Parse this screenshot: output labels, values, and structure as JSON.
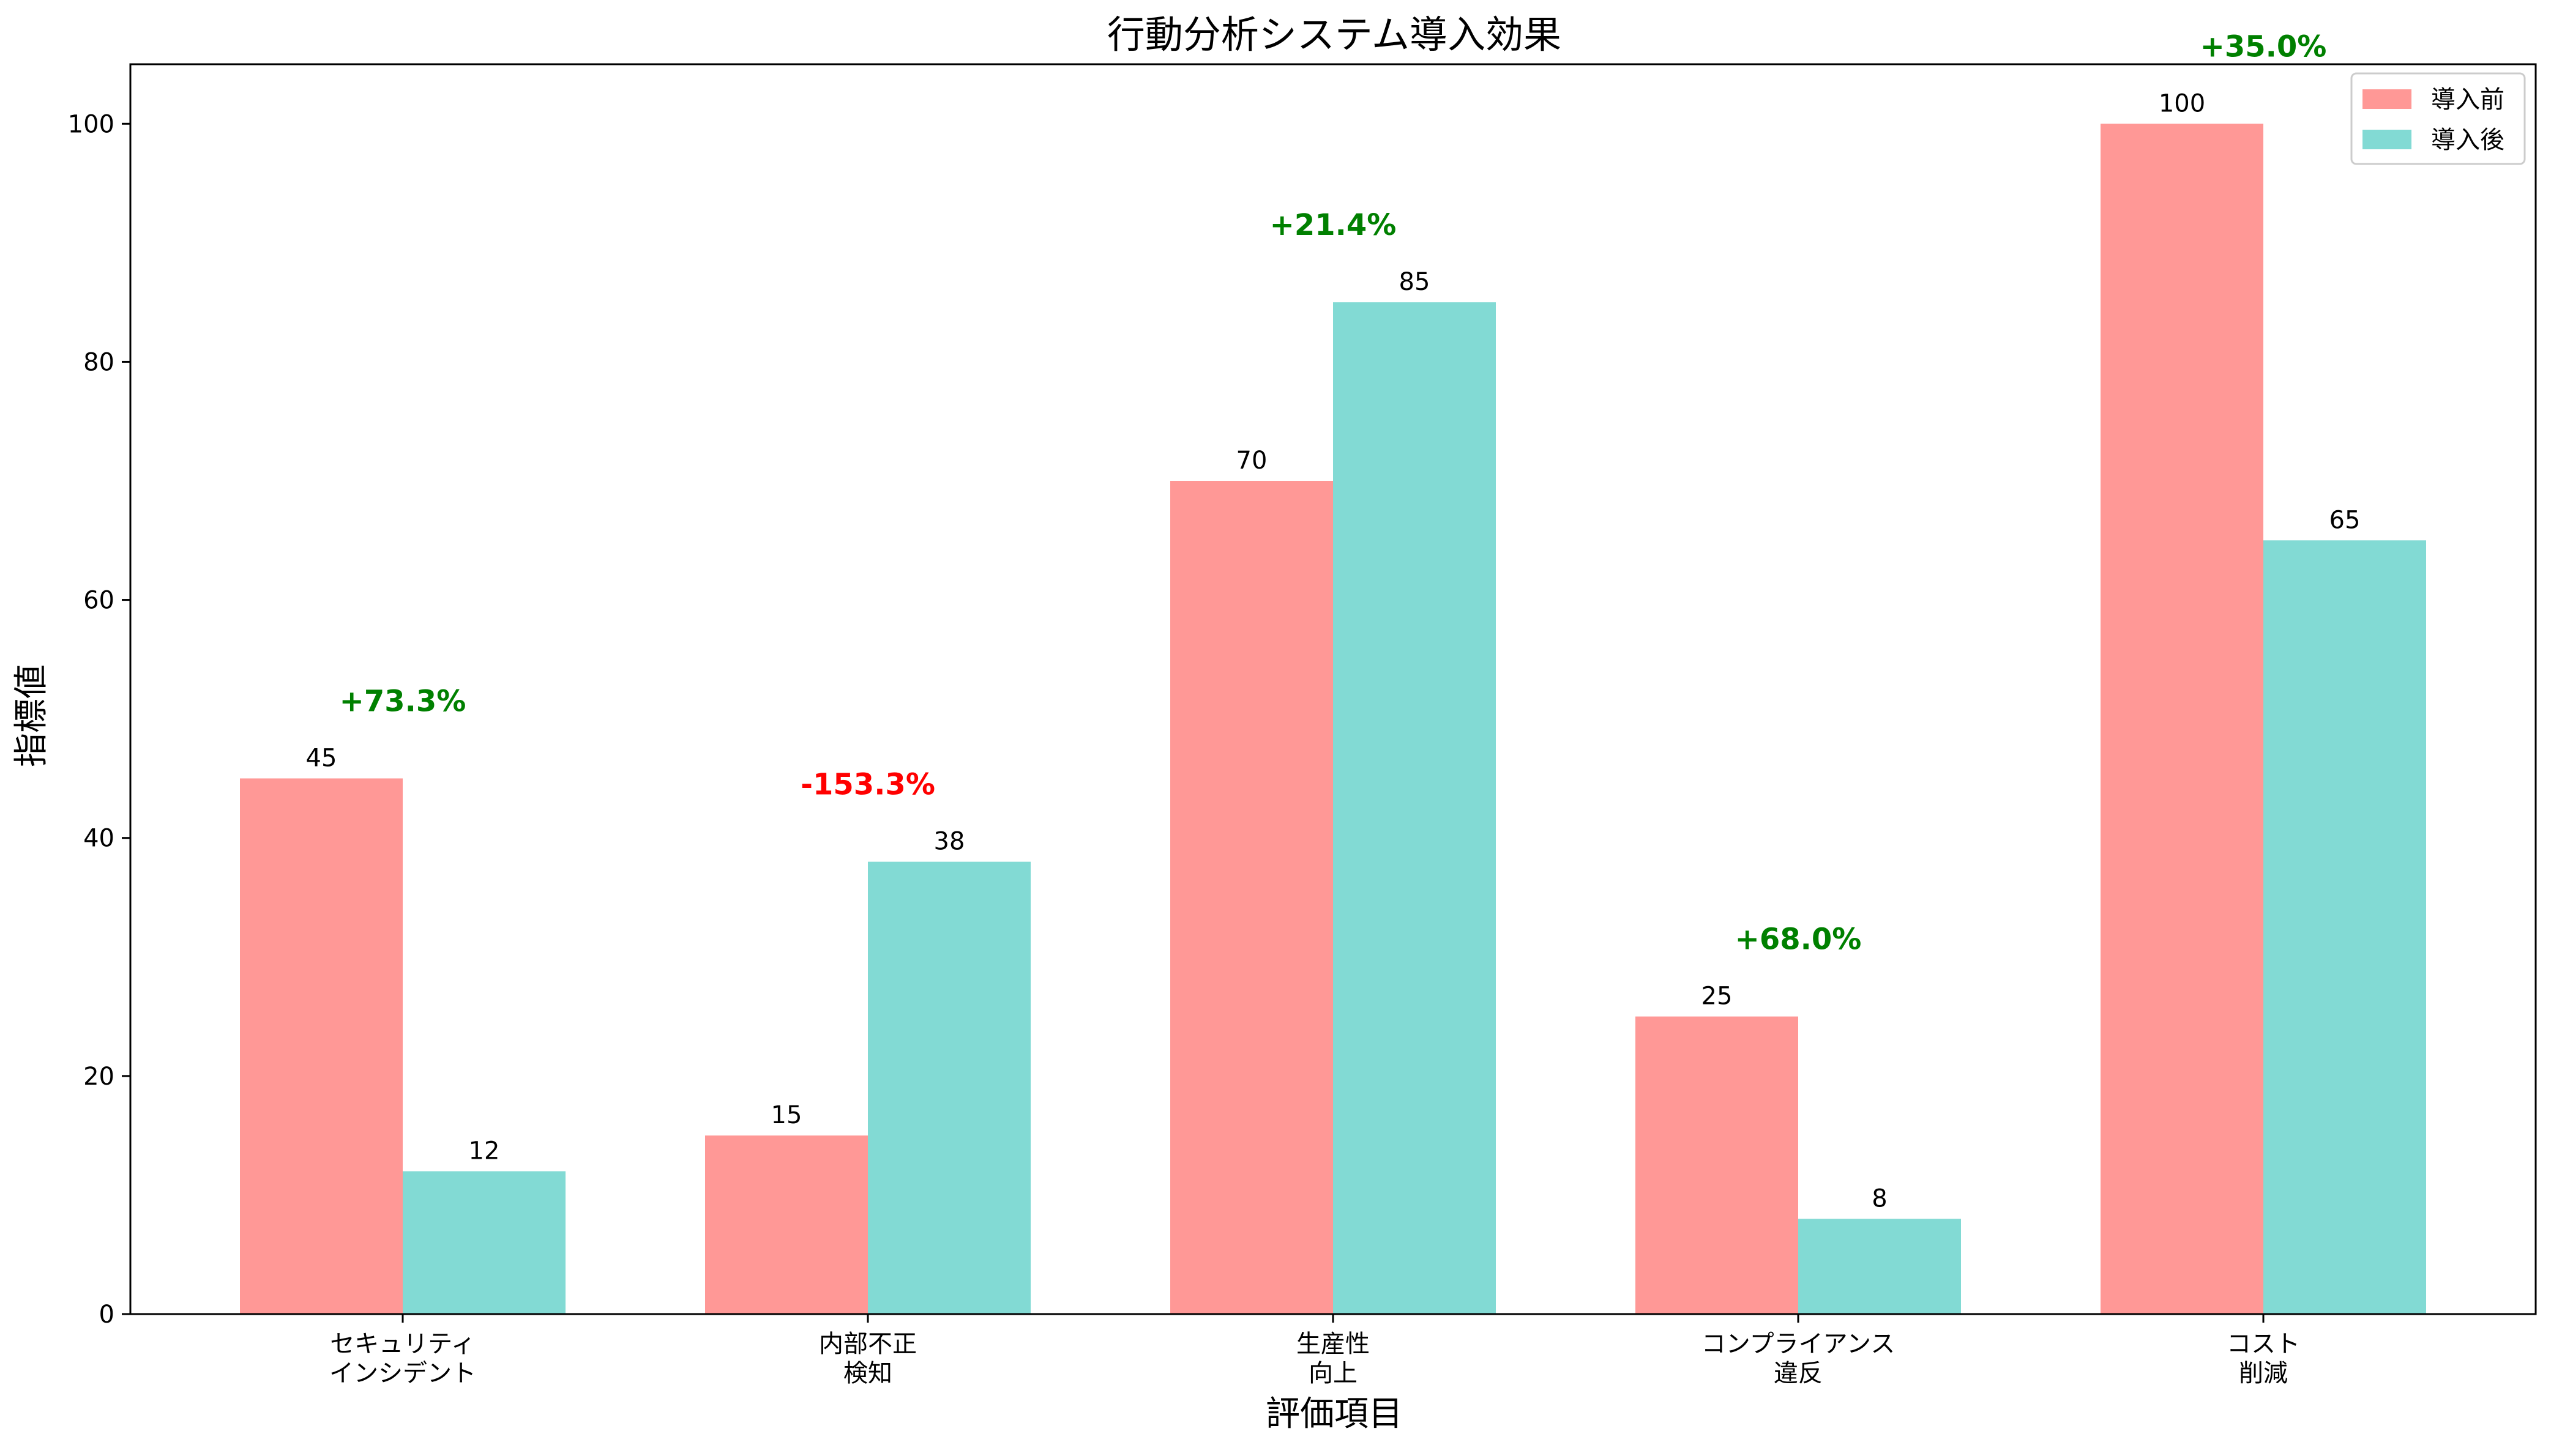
{
  "chart_data": {
    "type": "bar",
    "title": "行動分析システム導入効果",
    "xlabel": "評価項目",
    "ylabel": "指標値",
    "categories": [
      [
        "セキュリティ",
        "インシデント"
      ],
      [
        "内部不正",
        "検知"
      ],
      [
        "生産性",
        "向上"
      ],
      [
        "コンプライアンス",
        "違反"
      ],
      [
        "コスト",
        "削減"
      ]
    ],
    "series": [
      {
        "name": "導入前",
        "color": "#ff9896",
        "values": [
          45,
          15,
          70,
          25,
          100
        ]
      },
      {
        "name": "導入後",
        "color": "#82dad4",
        "values": [
          12,
          38,
          85,
          8,
          65
        ]
      }
    ],
    "changes": [
      {
        "label": "+73.3%",
        "color": "#008000"
      },
      {
        "label": "-153.3%",
        "color": "#ff0000"
      },
      {
        "label": "+21.4%",
        "color": "#008000"
      },
      {
        "label": "+68.0%",
        "color": "#008000"
      },
      {
        "label": "+35.0%",
        "color": "#008000"
      }
    ],
    "ylim": [
      0,
      105
    ],
    "yticks": [
      0,
      20,
      40,
      60,
      80,
      100
    ],
    "grid": false,
    "legend_position": "top-right"
  }
}
